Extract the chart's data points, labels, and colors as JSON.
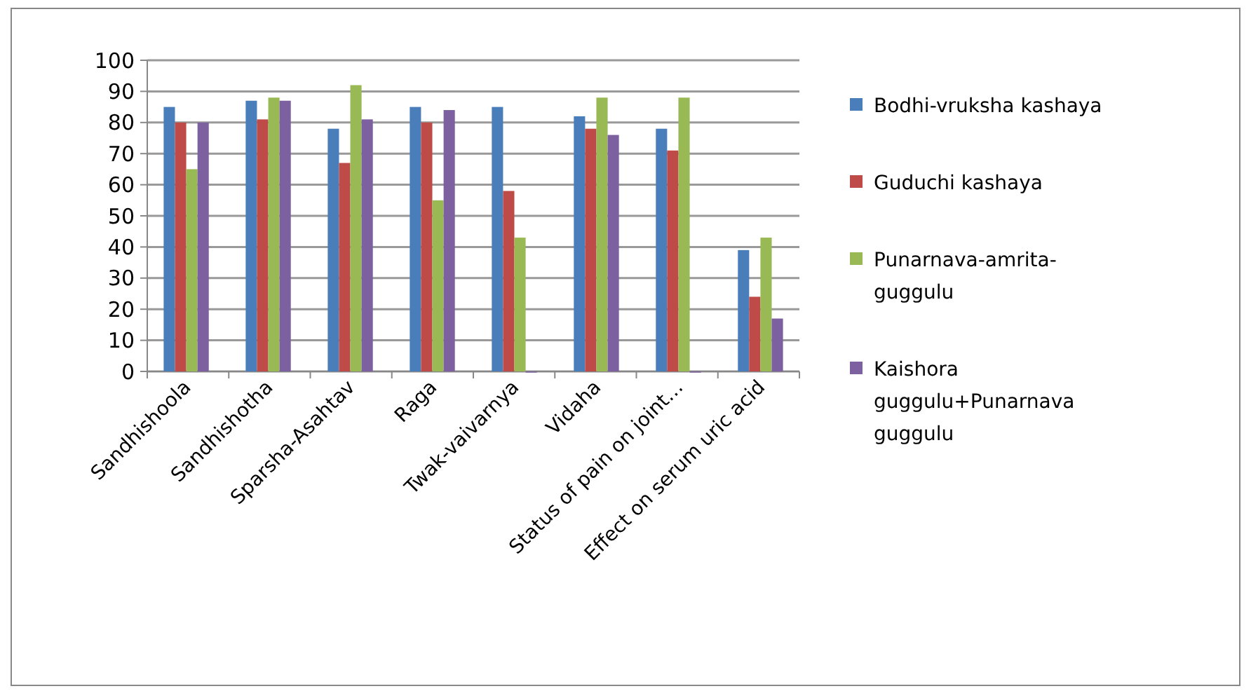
{
  "chart_data": {
    "type": "bar",
    "categories": [
      "Sandhishoola",
      "Sandhishotha",
      "Sparsha-Asahtav",
      "Raga",
      "Twak-vaivarnya",
      "Vidaha",
      "Status of pain on joint…",
      "Effect on serum uric acid"
    ],
    "series": [
      {
        "name": "Bodhi-vruksha kashaya",
        "color": "#4a7ebb",
        "values": [
          85,
          87,
          78,
          85,
          85,
          82,
          78,
          39
        ]
      },
      {
        "name": "Guduchi kashaya",
        "color": "#be4b48",
        "values": [
          80,
          81,
          67,
          80,
          58,
          78,
          71,
          24
        ]
      },
      {
        "name": "Punarnava-amrita-guggulu",
        "color": "#98b954",
        "values": [
          65,
          88,
          92,
          55,
          43,
          88,
          88,
          43
        ]
      },
      {
        "name": "Kaishora guggulu+Punarnava guggulu",
        "color": "#7d60a0",
        "values": [
          80,
          87,
          81,
          84,
          0,
          76,
          0,
          17
        ]
      }
    ],
    "ylim": [
      0,
      100
    ],
    "yticks": [
      0,
      10,
      20,
      30,
      40,
      50,
      60,
      70,
      80,
      90,
      100
    ],
    "grid": "y",
    "legend": "right"
  }
}
